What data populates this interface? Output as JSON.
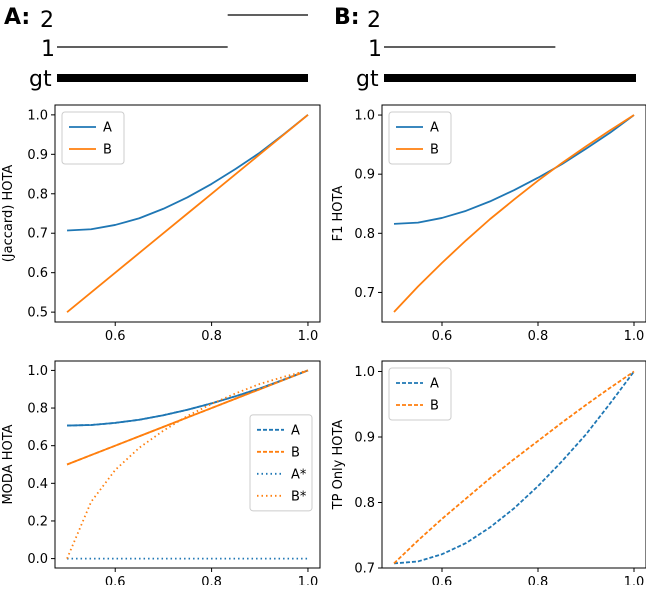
{
  "panels": {
    "A": {
      "letter": "A:",
      "tracks": {
        "label_2": "2",
        "label_1": "1",
        "label_gt": "gt",
        "gt_range": [
          0,
          1
        ],
        "track_1_range": [
          0,
          0.68
        ],
        "track_2_range": [
          0.68,
          1
        ]
      }
    },
    "B": {
      "letter": "B:",
      "tracks": {
        "label_2": "2",
        "label_1": "1",
        "label_gt": "gt",
        "gt_range": [
          0,
          1
        ],
        "track_1_range": [
          0,
          0.68
        ]
      }
    }
  },
  "chart_data": [
    {
      "id": "A-top",
      "type": "line",
      "title": "",
      "xlabel": "",
      "ylabel": "(Jaccard) HOTA",
      "xlim": [
        0.475,
        1.025
      ],
      "ylim": [
        0.475,
        1.025
      ],
      "xticks": [
        0.6,
        0.8,
        1.0
      ],
      "xtick_labels": [
        "0.6",
        "0.8",
        "1.0"
      ],
      "yticks": [
        0.5,
        0.6,
        0.7,
        0.8,
        0.9,
        1.0
      ],
      "ytick_labels": [
        "0.5",
        "0.6",
        "0.7",
        "0.8",
        "0.9",
        "1.0"
      ],
      "legend": "top-left",
      "x": [
        0.5,
        0.55,
        0.6,
        0.65,
        0.7,
        0.75,
        0.8,
        0.85,
        0.9,
        0.95,
        1.0
      ],
      "series": [
        {
          "name": "A",
          "color": "#1f77b4",
          "style": "solid",
          "values": [
            0.707,
            0.71,
            0.721,
            0.738,
            0.762,
            0.791,
            0.825,
            0.863,
            0.904,
            0.951,
            1.0
          ]
        },
        {
          "name": "B",
          "color": "#ff7f0e",
          "style": "solid",
          "values": [
            0.5,
            0.55,
            0.6,
            0.65,
            0.7,
            0.75,
            0.8,
            0.85,
            0.9,
            0.95,
            1.0
          ]
        }
      ]
    },
    {
      "id": "B-top",
      "type": "line",
      "title": "",
      "xlabel": "",
      "ylabel": "F1 HOTA",
      "xlim": [
        0.475,
        1.025
      ],
      "ylim": [
        0.65,
        1.017
      ],
      "xticks": [
        0.6,
        0.8,
        1.0
      ],
      "xtick_labels": [
        "0.6",
        "0.8",
        "1.0"
      ],
      "yticks": [
        0.7,
        0.8,
        0.9,
        1.0
      ],
      "ytick_labels": [
        "0.7",
        "0.8",
        "0.9",
        "1.0"
      ],
      "legend": "top-left",
      "x": [
        0.5,
        0.55,
        0.6,
        0.65,
        0.7,
        0.75,
        0.8,
        0.85,
        0.9,
        0.95,
        1.0
      ],
      "series": [
        {
          "name": "A",
          "color": "#1f77b4",
          "style": "solid",
          "values": [
            0.816,
            0.818,
            0.826,
            0.838,
            0.854,
            0.873,
            0.894,
            0.917,
            0.943,
            0.97,
            1.0
          ]
        },
        {
          "name": "B",
          "color": "#ff7f0e",
          "style": "solid",
          "values": [
            0.667,
            0.71,
            0.75,
            0.788,
            0.824,
            0.857,
            0.889,
            0.919,
            0.947,
            0.974,
            1.0
          ]
        }
      ]
    },
    {
      "id": "A-bottom",
      "type": "line",
      "title": "",
      "xlabel": "",
      "ylabel": "MODA HOTA",
      "xlim": [
        0.475,
        1.025
      ],
      "ylim": [
        -0.05,
        1.05
      ],
      "xticks": [
        0.6,
        0.8,
        1.0
      ],
      "xtick_labels": [
        "0.6",
        "0.8",
        "1.0"
      ],
      "yticks": [
        0.0,
        0.2,
        0.4,
        0.6,
        0.8,
        1.0
      ],
      "ytick_labels": [
        "0.0",
        "0.2",
        "0.4",
        "0.6",
        "0.8",
        "1.0"
      ],
      "legend": "center-right",
      "x": [
        0.5,
        0.55,
        0.6,
        0.65,
        0.7,
        0.75,
        0.8,
        0.85,
        0.9,
        0.95,
        1.0
      ],
      "series": [
        {
          "name": "A",
          "color": "#1f77b4",
          "style": "dashed",
          "values": [
            0.707,
            0.71,
            0.721,
            0.738,
            0.762,
            0.791,
            0.825,
            0.863,
            0.904,
            0.951,
            1.0
          ]
        },
        {
          "name": "B",
          "color": "#ff7f0e",
          "style": "dashed",
          "values": [
            0.5,
            0.55,
            0.6,
            0.65,
            0.7,
            0.75,
            0.8,
            0.85,
            0.9,
            0.95,
            1.0
          ]
        },
        {
          "name": "A*",
          "color": "#1f77b4",
          "style": "dotted",
          "values": [
            0.0,
            0.0,
            0.0,
            0.0,
            0.0,
            0.0,
            0.0,
            0.0,
            0.0,
            0.0,
            0.0
          ]
        },
        {
          "name": "B*",
          "color": "#ff7f0e",
          "style": "dotted",
          "values": [
            0.0,
            0.302,
            0.471,
            0.589,
            0.68,
            0.758,
            0.822,
            0.878,
            0.928,
            0.966,
            1.0
          ]
        }
      ],
      "overlays": [
        {
          "color": "#1f77b4",
          "style": "solid",
          "values": [
            0.707,
            0.71,
            0.721,
            0.738,
            0.762,
            0.791,
            0.825,
            0.863,
            0.904,
            0.951,
            1.0
          ]
        },
        {
          "color": "#ff7f0e",
          "style": "solid",
          "values": [
            0.5,
            0.55,
            0.6,
            0.65,
            0.7,
            0.75,
            0.8,
            0.85,
            0.9,
            0.95,
            1.0
          ]
        }
      ]
    },
    {
      "id": "B-bottom",
      "type": "line",
      "title": "",
      "xlabel": "",
      "ylabel": "TP Only HOTA",
      "xlim": [
        0.475,
        1.025
      ],
      "ylim": [
        0.7,
        1.016
      ],
      "xticks": [
        0.6,
        0.8,
        1.0
      ],
      "xtick_labels": [
        "0.6",
        "0.8",
        "1.0"
      ],
      "yticks": [
        0.7,
        0.8,
        0.9,
        1.0
      ],
      "ytick_labels": [
        "0.7",
        "0.8",
        "0.9",
        "1.0"
      ],
      "legend": "top-left",
      "x": [
        0.5,
        0.55,
        0.6,
        0.65,
        0.7,
        0.75,
        0.8,
        0.85,
        0.9,
        0.95,
        1.0
      ],
      "series": [
        {
          "name": "A",
          "color": "#1f77b4",
          "style": "dashed",
          "values": [
            0.707,
            0.71,
            0.721,
            0.738,
            0.762,
            0.791,
            0.825,
            0.863,
            0.904,
            0.951,
            1.0
          ]
        },
        {
          "name": "B",
          "color": "#ff7f0e",
          "style": "dashed",
          "values": [
            0.707,
            0.742,
            0.775,
            0.806,
            0.837,
            0.866,
            0.894,
            0.922,
            0.949,
            0.975,
            1.0
          ]
        }
      ]
    }
  ]
}
